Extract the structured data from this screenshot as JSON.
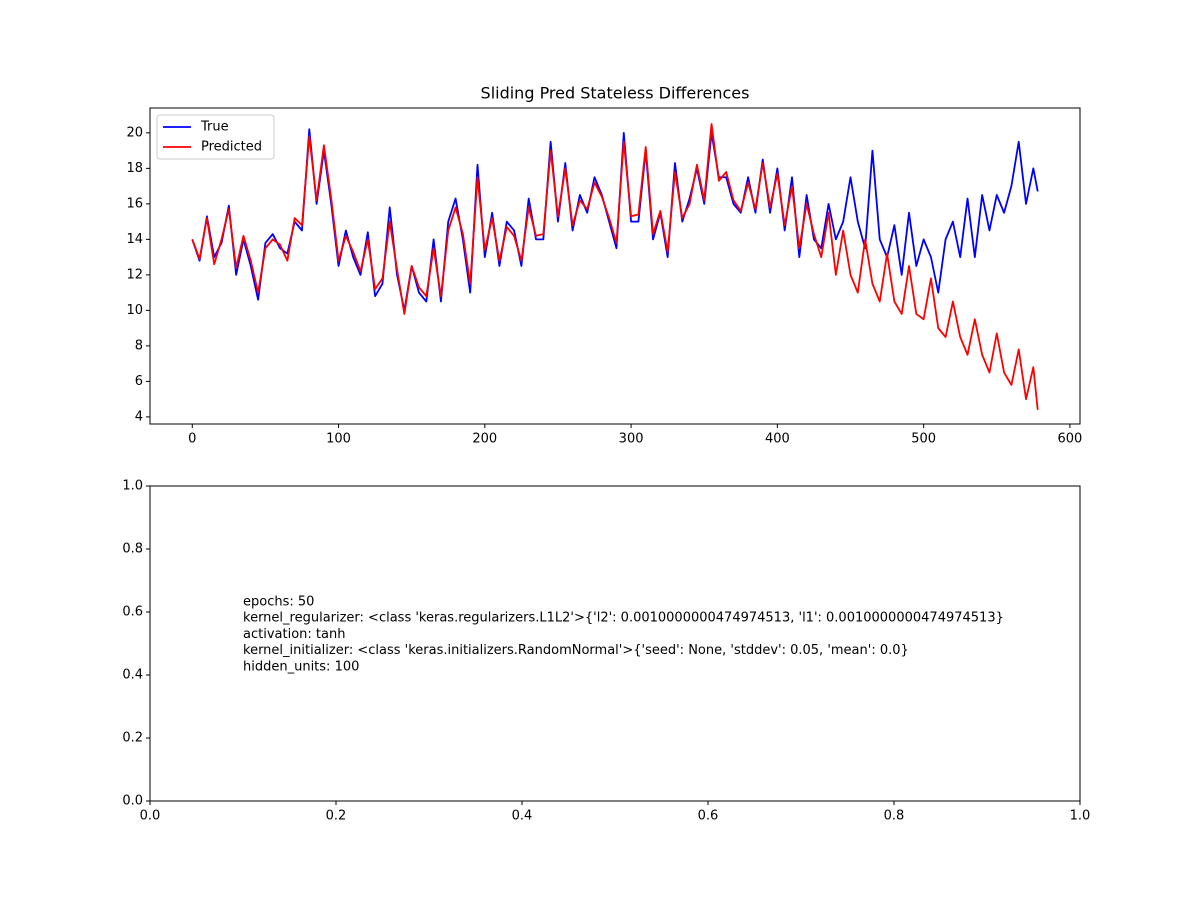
{
  "chart_data": [
    {
      "type": "line",
      "title": "Sliding Pred Stateless Differences",
      "x": [
        0,
        5,
        10,
        15,
        20,
        25,
        30,
        35,
        40,
        45,
        50,
        55,
        60,
        65,
        70,
        75,
        80,
        85,
        90,
        95,
        100,
        105,
        110,
        115,
        120,
        125,
        130,
        135,
        140,
        145,
        150,
        155,
        160,
        165,
        170,
        175,
        180,
        185,
        190,
        195,
        200,
        205,
        210,
        215,
        220,
        225,
        230,
        235,
        240,
        245,
        250,
        255,
        260,
        265,
        270,
        275,
        280,
        285,
        290,
        295,
        300,
        305,
        310,
        315,
        320,
        325,
        330,
        335,
        340,
        345,
        350,
        355,
        360,
        365,
        370,
        375,
        380,
        385,
        390,
        395,
        400,
        405,
        410,
        415,
        420,
        425,
        430,
        435,
        440,
        445,
        450,
        455,
        460,
        465,
        470,
        475,
        480,
        485,
        490,
        495,
        500,
        505,
        510,
        515,
        520,
        525,
        530,
        535,
        540,
        545,
        550,
        555,
        560,
        565,
        570,
        575,
        578
      ],
      "series": [
        {
          "name": "True",
          "color": "#0000ff",
          "values": [
            14.0,
            12.8,
            15.3,
            13.0,
            13.8,
            15.9,
            12.0,
            14.0,
            12.5,
            10.6,
            13.8,
            14.3,
            13.5,
            13.2,
            15.0,
            14.5,
            20.2,
            16.0,
            19.0,
            16.0,
            12.5,
            14.5,
            13.0,
            12.0,
            14.4,
            10.8,
            11.5,
            15.8,
            12.0,
            10.0,
            12.5,
            11.0,
            10.5,
            14.0,
            10.5,
            15.0,
            16.3,
            14.0,
            11.0,
            18.2,
            13.0,
            15.5,
            12.5,
            15.0,
            14.5,
            12.5,
            16.3,
            14.0,
            14.0,
            19.5,
            15.0,
            18.3,
            14.5,
            16.5,
            15.5,
            17.5,
            16.5,
            15.0,
            13.5,
            20.0,
            15.0,
            15.0,
            19.0,
            14.0,
            15.5,
            13.0,
            18.3,
            15.0,
            16.3,
            18.0,
            16.0,
            20.0,
            17.5,
            17.5,
            16.0,
            15.5,
            17.5,
            15.5,
            18.5,
            15.5,
            18.0,
            14.5,
            17.5,
            13.0,
            16.5,
            14.0,
            13.5,
            16.0,
            14.0,
            15.0,
            17.5,
            15.0,
            13.5,
            19.0,
            14.0,
            13.0,
            14.8,
            12.0,
            15.5,
            12.5,
            14.0,
            13.0,
            11.0,
            14.0,
            15.0,
            13.0,
            16.3,
            13.0,
            16.5,
            14.5,
            16.5,
            15.5,
            17.0,
            19.5,
            16.0,
            18.0,
            16.7
          ]
        },
        {
          "name": "Predicted",
          "color": "#ff0000",
          "values": [
            14.0,
            12.9,
            15.2,
            12.6,
            14.0,
            15.7,
            12.4,
            14.2,
            12.8,
            11.0,
            13.5,
            14.0,
            13.7,
            12.8,
            15.2,
            14.8,
            19.8,
            16.2,
            19.3,
            16.3,
            12.8,
            14.2,
            13.3,
            12.2,
            14.0,
            11.2,
            11.8,
            15.0,
            12.3,
            9.8,
            12.5,
            11.3,
            10.8,
            13.5,
            10.8,
            14.5,
            15.8,
            14.3,
            11.5,
            17.5,
            13.4,
            15.2,
            12.8,
            14.7,
            14.2,
            12.8,
            15.8,
            14.2,
            14.3,
            19.0,
            15.3,
            18.0,
            14.8,
            16.2,
            15.7,
            17.2,
            16.4,
            15.2,
            13.8,
            19.5,
            15.3,
            15.4,
            19.2,
            14.3,
            15.6,
            13.3,
            17.8,
            15.2,
            16.0,
            18.2,
            16.2,
            20.5,
            17.3,
            17.8,
            16.2,
            15.6,
            17.2,
            15.7,
            18.3,
            15.8,
            17.7,
            14.8,
            17.0,
            13.5,
            16.0,
            14.3,
            13.0,
            15.5,
            12.0,
            14.5,
            12.0,
            11.0,
            14.0,
            11.5,
            10.5,
            13.2,
            10.5,
            9.8,
            12.5,
            9.8,
            9.5,
            11.8,
            9.0,
            8.5,
            10.5,
            8.5,
            7.5,
            9.5,
            7.5,
            6.5,
            8.7,
            6.5,
            5.8,
            7.8,
            5.0,
            6.8,
            4.4
          ]
        }
      ],
      "xlim": [
        -28.9,
        606.9
      ],
      "xticks": [
        0,
        100,
        200,
        300,
        400,
        500,
        600
      ],
      "ylim": [
        3.6,
        21.4
      ],
      "yticks": [
        4,
        6,
        8,
        10,
        12,
        14,
        16,
        18,
        20
      ],
      "legend": "upper left"
    },
    {
      "type": "text",
      "annotations": [
        "epochs: 50",
        "kernel_regularizer: <class 'keras.regularizers.L1L2'>{'l2': 0.0010000000474974513, 'l1': 0.0010000000474974513}",
        "activation: tanh",
        "kernel_initializer: <class 'keras.initializers.RandomNormal'>{'seed': None, 'stddev': 0.05, 'mean': 0.0}",
        "hidden_units: 100"
      ],
      "annotation_x": 0.1,
      "xlim": [
        0,
        1
      ],
      "xticks": [
        {
          "value": 0,
          "label": "0.0"
        },
        {
          "value": 0.2,
          "label": "0.2"
        },
        {
          "value": 0.4,
          "label": "0.4"
        },
        {
          "value": 0.6,
          "label": "0.6"
        },
        {
          "value": 0.8,
          "label": "0.8"
        },
        {
          "value": 1,
          "label": "1.0"
        }
      ],
      "ylim": [
        0,
        1
      ],
      "yticks": [
        {
          "value": 0,
          "label": "0.0"
        },
        {
          "value": 0.2,
          "label": "0.2"
        },
        {
          "value": 0.4,
          "label": "0.4"
        },
        {
          "value": 0.6,
          "label": "0.6"
        },
        {
          "value": 0.8,
          "label": "0.8"
        },
        {
          "value": 1,
          "label": "1.0"
        }
      ]
    }
  ]
}
